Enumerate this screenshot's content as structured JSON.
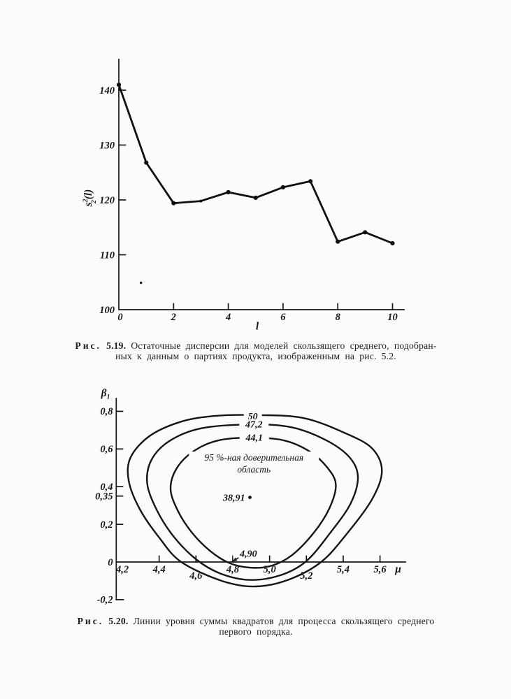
{
  "page": {
    "background": "#fcfcfb",
    "ink": "#171717"
  },
  "figures": {
    "fig519": {
      "caption_word": "Рис.",
      "caption_num": "5.19.",
      "caption_line1": "Остаточные дисперсии для моделей скользящего среднего, подобран-",
      "caption_line2": "ных к данным о партиях продукта, изображенным на рис. 5.2."
    },
    "fig520": {
      "caption_word": "Рис.",
      "caption_num": "5.20.",
      "caption_line1": "Линии уровня суммы квадратов для процесса скользящего среднего",
      "caption_line2": "первого порядка."
    }
  },
  "chart_data": [
    {
      "figure": "5.19",
      "type": "line",
      "title": "",
      "xlabel": "l",
      "ylabel": "s₂²(l)",
      "ylabel_parts": {
        "base": "s",
        "sup": "2",
        "sub": "2",
        "rest": "(l)"
      },
      "x": [
        0,
        1,
        2,
        3,
        4,
        5,
        6,
        7,
        8,
        9,
        10
      ],
      "y": [
        141.0,
        126.8,
        119.4,
        119.8,
        121.4,
        120.4,
        122.3,
        123.4,
        112.4,
        114.1,
        112.1
      ],
      "xticks": [
        {
          "v": 0,
          "label": "0"
        },
        {
          "v": 2,
          "label": "2"
        },
        {
          "v": 4,
          "label": "4"
        },
        {
          "v": 6,
          "label": "6"
        },
        {
          "v": 8,
          "label": "8"
        },
        {
          "v": 10,
          "label": "10"
        }
      ],
      "yticks": [
        {
          "v": 100,
          "label": "100"
        },
        {
          "v": 110,
          "label": "110"
        },
        {
          "v": 120,
          "label": "120"
        },
        {
          "v": 130,
          "label": "130"
        },
        {
          "v": 140,
          "label": "140"
        }
      ],
      "xlim": [
        0,
        10.4
      ],
      "ylim": [
        100,
        145.6
      ],
      "grid": false,
      "marker": "filled-circle",
      "stray_print_mark": {
        "x": 0.81,
        "y": 104.9
      }
    },
    {
      "figure": "5.20",
      "type": "contour",
      "title": "",
      "xlabel": "μ",
      "ylabel": "β₁",
      "ylabel_parts": {
        "base": "β",
        "sub": "1"
      },
      "xticks": [
        {
          "v": 4.2,
          "label": "4,2",
          "row": 0
        },
        {
          "v": 4.4,
          "label": "4,4",
          "row": 0
        },
        {
          "v": 4.6,
          "label": "4,6",
          "row": 1
        },
        {
          "v": 4.8,
          "label": "4,8",
          "row": 0
        },
        {
          "v": 5.0,
          "label": "5,0",
          "row": 0
        },
        {
          "v": 5.2,
          "label": "5,2",
          "row": 1
        },
        {
          "v": 5.4,
          "label": "5,4",
          "row": 0
        },
        {
          "v": 5.6,
          "label": "5,6",
          "row": 0
        }
      ],
      "yticks": [
        {
          "v": -0.2,
          "label": "-0,2"
        },
        {
          "v": 0,
          "label": "0"
        },
        {
          "v": 0.2,
          "label": "0,2"
        },
        {
          "v": 0.35,
          "label": "0,35"
        },
        {
          "v": 0.4,
          "label": "0,4"
        },
        {
          "v": 0.6,
          "label": "0,6"
        },
        {
          "v": 0.8,
          "label": "0,8"
        }
      ],
      "xlim": [
        4.17,
        5.74
      ],
      "ylim": [
        -0.2,
        0.87
      ],
      "grid": false,
      "contours": [
        {
          "level": 50,
          "label": "50",
          "hatched": false,
          "label_at": {
            "x": 4.909,
            "y": 0.775
          },
          "points": [
            [
              4.9,
              0.78
            ],
            [
              5.18,
              0.765
            ],
            [
              5.42,
              0.68
            ],
            [
              5.56,
              0.6
            ],
            [
              5.61,
              0.48
            ],
            [
              5.555,
              0.33
            ],
            [
              5.42,
              0.15
            ],
            [
              5.28,
              0.0
            ],
            [
              5.1,
              -0.095
            ],
            [
              4.92,
              -0.13
            ],
            [
              4.74,
              -0.1
            ],
            [
              4.52,
              0.0
            ],
            [
              4.4,
              0.13
            ],
            [
              4.295,
              0.28
            ],
            [
              4.235,
              0.43
            ],
            [
              4.245,
              0.555
            ],
            [
              4.35,
              0.67
            ],
            [
              4.52,
              0.745
            ],
            [
              4.7,
              0.775
            ]
          ]
        },
        {
          "level": 47.2,
          "label": "47,2",
          "hatched": false,
          "label_at": {
            "x": 4.915,
            "y": 0.732
          },
          "points": [
            [
              4.9,
              0.73
            ],
            [
              5.12,
              0.715
            ],
            [
              5.31,
              0.645
            ],
            [
              5.435,
              0.555
            ],
            [
              5.48,
              0.45
            ],
            [
              5.44,
              0.31
            ],
            [
              5.33,
              0.155
            ],
            [
              5.2,
              0.005
            ],
            [
              5.06,
              -0.07
            ],
            [
              4.89,
              -0.095
            ],
            [
              4.73,
              -0.06
            ],
            [
              4.6,
              0.015
            ],
            [
              4.475,
              0.14
            ],
            [
              4.385,
              0.28
            ],
            [
              4.335,
              0.42
            ],
            [
              4.36,
              0.545
            ],
            [
              4.46,
              0.645
            ],
            [
              4.63,
              0.71
            ]
          ]
        },
        {
          "level": 44.1,
          "label": "44,1",
          "hatched": true,
          "label_at": {
            "x": 4.917,
            "y": 0.662
          },
          "points": [
            [
              4.9,
              0.66
            ],
            [
              5.08,
              0.645
            ],
            [
              5.22,
              0.585
            ],
            [
              5.315,
              0.5
            ],
            [
              5.36,
              0.41
            ],
            [
              5.325,
              0.285
            ],
            [
              5.24,
              0.155
            ],
            [
              5.12,
              0.035
            ],
            [
              5.01,
              -0.02
            ],
            [
              4.895,
              -0.03
            ],
            [
              4.78,
              -0.005
            ],
            [
              4.675,
              0.06
            ],
            [
              4.575,
              0.16
            ],
            [
              4.5,
              0.275
            ],
            [
              4.462,
              0.39
            ],
            [
              4.497,
              0.5
            ],
            [
              4.59,
              0.59
            ],
            [
              4.72,
              0.645
            ]
          ]
        }
      ],
      "region_label": {
        "line1": "95 %-ная доверительная",
        "line2": "область",
        "at": {
          "x": 4.915,
          "y": 0.553
        }
      },
      "minimum": {
        "x": 4.893,
        "y": 0.343,
        "value_label": "38,91"
      },
      "axis_callout": {
        "label": "4,90",
        "label_at": {
          "x": 4.885,
          "y": 0.045
        },
        "arrow_to": {
          "x": 4.8,
          "y": 0.002
        }
      }
    }
  ]
}
